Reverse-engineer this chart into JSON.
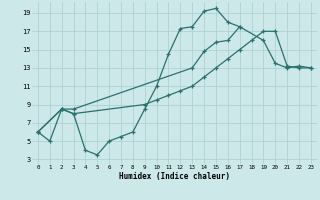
{
  "xlabel": "Humidex (Indice chaleur)",
  "bg_color": "#cde8e8",
  "grid_color": "#aacece",
  "line_color": "#2a7070",
  "xlim": [
    -0.5,
    23.5
  ],
  "ylim": [
    2.5,
    20.2
  ],
  "xticks": [
    0,
    1,
    2,
    3,
    4,
    5,
    6,
    7,
    8,
    9,
    10,
    11,
    12,
    13,
    14,
    15,
    16,
    17,
    18,
    19,
    20,
    21,
    22,
    23
  ],
  "yticks": [
    3,
    5,
    7,
    9,
    11,
    13,
    15,
    17,
    19
  ],
  "line1_x": [
    0,
    1,
    2,
    3,
    4,
    5,
    6,
    7,
    8,
    9,
    10,
    11,
    12,
    13,
    14,
    15,
    16,
    17
  ],
  "line1_y": [
    6,
    5,
    8.5,
    8,
    4,
    3.5,
    5,
    5.5,
    6,
    8.5,
    11,
    14.5,
    17.3,
    17.5,
    19.2,
    19.5,
    18,
    17.5
  ],
  "line2_x": [
    0,
    2,
    3,
    13,
    14,
    15,
    16,
    17,
    19,
    20,
    21,
    22,
    23
  ],
  "line2_y": [
    6,
    8.5,
    8.5,
    13,
    14.8,
    15.8,
    16,
    17.5,
    16,
    13.5,
    13,
    13.2,
    13
  ],
  "line3_x": [
    0,
    2,
    3,
    9,
    10,
    11,
    12,
    13,
    14,
    15,
    16,
    17,
    18,
    19,
    20,
    21,
    22,
    23
  ],
  "line3_y": [
    6,
    8.5,
    8,
    9,
    9.5,
    10,
    10.5,
    11,
    12,
    13,
    14,
    15,
    16,
    17,
    17,
    13.2,
    13,
    13
  ]
}
